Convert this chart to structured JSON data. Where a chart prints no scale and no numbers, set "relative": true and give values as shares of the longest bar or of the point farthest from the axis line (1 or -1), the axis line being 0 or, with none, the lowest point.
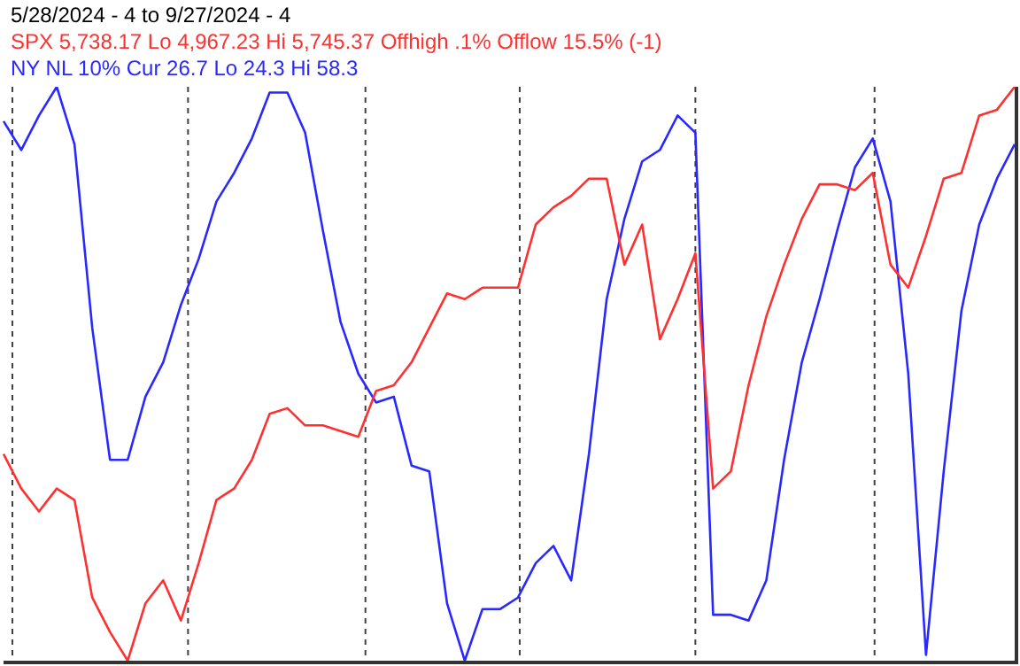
{
  "chart_data": {
    "type": "line",
    "relative": true,
    "title": "5/28/2024 - 4 to 9/27/2024 - 4",
    "legend": "top left",
    "line_style": "solid",
    "marker": "none",
    "categories": [
      null,
      null,
      null,
      null,
      null,
      null,
      null,
      null,
      null,
      null,
      null,
      null,
      null,
      null,
      null,
      null,
      null,
      null,
      null,
      null,
      null,
      null,
      null,
      null,
      null,
      null,
      null,
      null,
      null,
      null,
      null,
      null,
      null,
      null,
      null,
      null,
      null,
      null,
      null,
      null,
      null,
      null,
      null,
      null,
      null,
      null,
      null,
      null,
      null,
      null,
      null,
      null,
      null,
      null,
      null,
      null,
      null,
      null
    ],
    "series": [
      {
        "name": "SPX 5,738.17 Lo 4,967.23 Hi 5,745.37 Offhigh .1% Offlow 15.5% (-1)",
        "color": "#ff3030",
        "values": [
          0.36,
          0.3,
          0.26,
          0.3,
          0.28,
          0.11,
          0.05,
          0,
          0.1,
          0.14,
          0.07,
          0.17,
          0.28,
          0.3,
          0.35,
          0.43,
          0.44,
          0.41,
          0.41,
          0.4,
          0.39,
          0.47,
          0.48,
          0.52,
          0.58,
          0.64,
          0.63,
          0.65,
          0.65,
          0.65,
          0.76,
          0.79,
          0.81,
          0.84,
          0.84,
          0.69,
          0.76,
          0.56,
          0.63,
          0.71,
          0.3,
          0.33,
          0.48,
          0.6,
          0.69,
          0.77,
          0.83,
          0.83,
          0.82,
          0.85,
          0.69,
          0.65,
          0.74,
          0.84,
          0.85,
          0.95,
          0.96,
          1
        ]
      },
      {
        "name": "NY NL 10% Cur 26.7 Lo 24.3 Hi 58.3",
        "color": "#2828ff",
        "values": [
          0.94,
          0.89,
          0.95,
          1,
          0.9,
          0.58,
          0.35,
          0.35,
          0.46,
          0.52,
          0.62,
          0.7,
          0.8,
          0.85,
          0.91,
          0.99,
          0.99,
          0.92,
          0.75,
          0.59,
          0.5,
          0.45,
          0.46,
          0.34,
          0.33,
          0.1,
          0,
          0.09,
          0.09,
          0.11,
          0.17,
          0.2,
          0.14,
          0.36,
          0.63,
          0.77,
          0.87,
          0.89,
          0.95,
          0.92,
          0.08,
          0.08,
          0.07,
          0.14,
          0.35,
          0.52,
          0.63,
          0.75,
          0.86,
          0.91,
          0.8,
          0.5,
          0.01,
          0.33,
          0.61,
          0.76,
          0.84,
          0.9
        ]
      }
    ],
    "grid": "x"
  }
}
